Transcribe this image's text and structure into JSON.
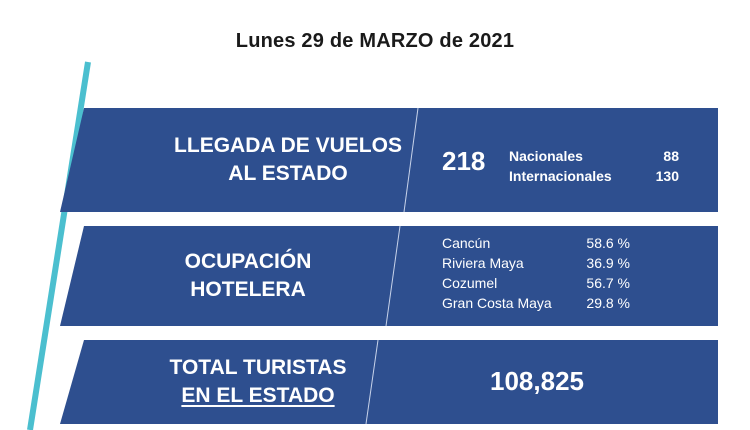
{
  "header": {
    "date": "Lunes 29 de MARZO de 2021"
  },
  "colors": {
    "band": "#2e4f8f",
    "accent": "#4bbfcf",
    "text": "#ffffff"
  },
  "flights": {
    "label_line1": "LLEGADA DE VUELOS",
    "label_line2": "AL ESTADO",
    "total": "218",
    "rows": [
      {
        "name": "Nacionales",
        "value": "88"
      },
      {
        "name": "Internacionales",
        "value": "130"
      }
    ]
  },
  "occupancy": {
    "label_line1": "OCUPACIÓN",
    "label_line2": "HOTELERA",
    "rows": [
      {
        "name": "Cancún",
        "value": "58.6 %"
      },
      {
        "name": "Riviera Maya",
        "value": "36.9 %"
      },
      {
        "name": "Cozumel",
        "value": "56.7 %"
      },
      {
        "name": "Gran Costa Maya",
        "value": "29.8 %"
      }
    ]
  },
  "tourists": {
    "label_line1": "TOTAL TURISTAS",
    "label_line2": "EN EL ESTADO",
    "total": "108,825"
  }
}
